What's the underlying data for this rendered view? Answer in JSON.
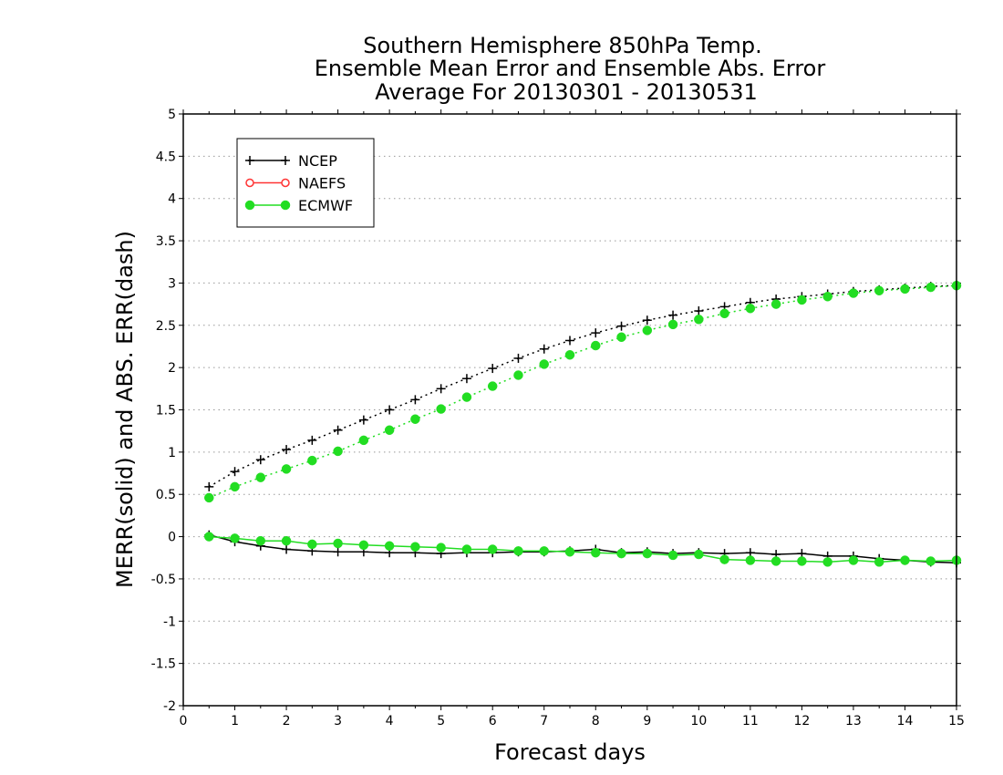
{
  "chart_data": {
    "type": "line",
    "title": [
      "Southern Hemisphere 850hPa Temp.",
      "Ensemble Mean Error and Ensemble Abs. Error",
      "Average For 20130301 - 20130531"
    ],
    "xlabel": "Forecast days",
    "ylabel": "MERR(solid) and ABS. ERR(dash)",
    "xlim": [
      0,
      15
    ],
    "ylim": [
      -2,
      5
    ],
    "xticks": [
      "0",
      "1",
      "2",
      "3",
      "4",
      "5",
      "6",
      "7",
      "8",
      "9",
      "10",
      "11",
      "12",
      "13",
      "14",
      "15"
    ],
    "yticks": [
      "5",
      "4.5",
      "4",
      "3.5",
      "3",
      "2.5",
      "2",
      "1.5",
      "1",
      "0.5",
      "0",
      "-0.5",
      "-1",
      "-1.5",
      "-2"
    ],
    "ytick_values": [
      5,
      4.5,
      4,
      3.5,
      3,
      2.5,
      2,
      1.5,
      1,
      0.5,
      0,
      -0.5,
      -1,
      -1.5,
      -2
    ],
    "grid": "horizontal dotted",
    "legend_position": "top-left",
    "x": [
      0.5,
      1,
      1.5,
      2,
      2.5,
      3,
      3.5,
      4,
      4.5,
      5,
      5.5,
      6,
      6.5,
      7,
      7.5,
      8,
      8.5,
      9,
      9.5,
      10,
      10.5,
      11,
      11.5,
      12,
      12.5,
      13,
      13.5,
      14,
      14.5,
      15
    ],
    "series": [
      {
        "name": "NCEP",
        "color": "#000000",
        "marker": "plus",
        "merr": [
          0.02,
          -0.06,
          -0.11,
          -0.15,
          -0.17,
          -0.18,
          -0.18,
          -0.19,
          -0.19,
          -0.2,
          -0.19,
          -0.19,
          -0.18,
          -0.18,
          -0.17,
          -0.15,
          -0.19,
          -0.18,
          -0.2,
          -0.19,
          -0.2,
          -0.19,
          -0.21,
          -0.2,
          -0.23,
          -0.23,
          -0.26,
          -0.28,
          -0.3,
          -0.31
        ],
        "abserr": [
          0.59,
          0.77,
          0.91,
          1.03,
          1.14,
          1.26,
          1.38,
          1.5,
          1.62,
          1.75,
          1.87,
          1.99,
          2.11,
          2.22,
          2.32,
          2.41,
          2.49,
          2.56,
          2.62,
          2.67,
          2.72,
          2.77,
          2.81,
          2.84,
          2.87,
          2.9,
          2.92,
          2.94,
          2.96,
          2.97
        ]
      },
      {
        "name": "NAEFS",
        "color": "#ff3333",
        "marker": "open-circle",
        "merr": [],
        "abserr": []
      },
      {
        "name": "ECMWF",
        "color": "#22dd22",
        "marker": "filled-circle",
        "merr": [
          0.0,
          -0.02,
          -0.05,
          -0.05,
          -0.09,
          -0.08,
          -0.1,
          -0.11,
          -0.12,
          -0.13,
          -0.15,
          -0.15,
          -0.17,
          -0.17,
          -0.18,
          -0.19,
          -0.2,
          -0.2,
          -0.22,
          -0.21,
          -0.27,
          -0.28,
          -0.29,
          -0.29,
          -0.3,
          -0.28,
          -0.3,
          -0.28,
          -0.29,
          -0.28
        ],
        "abserr": [
          0.46,
          0.59,
          0.7,
          0.8,
          0.9,
          1.01,
          1.14,
          1.26,
          1.39,
          1.51,
          1.65,
          1.78,
          1.91,
          2.04,
          2.15,
          2.26,
          2.36,
          2.44,
          2.51,
          2.57,
          2.64,
          2.7,
          2.75,
          2.8,
          2.84,
          2.88,
          2.91,
          2.93,
          2.95,
          2.97
        ]
      }
    ]
  }
}
